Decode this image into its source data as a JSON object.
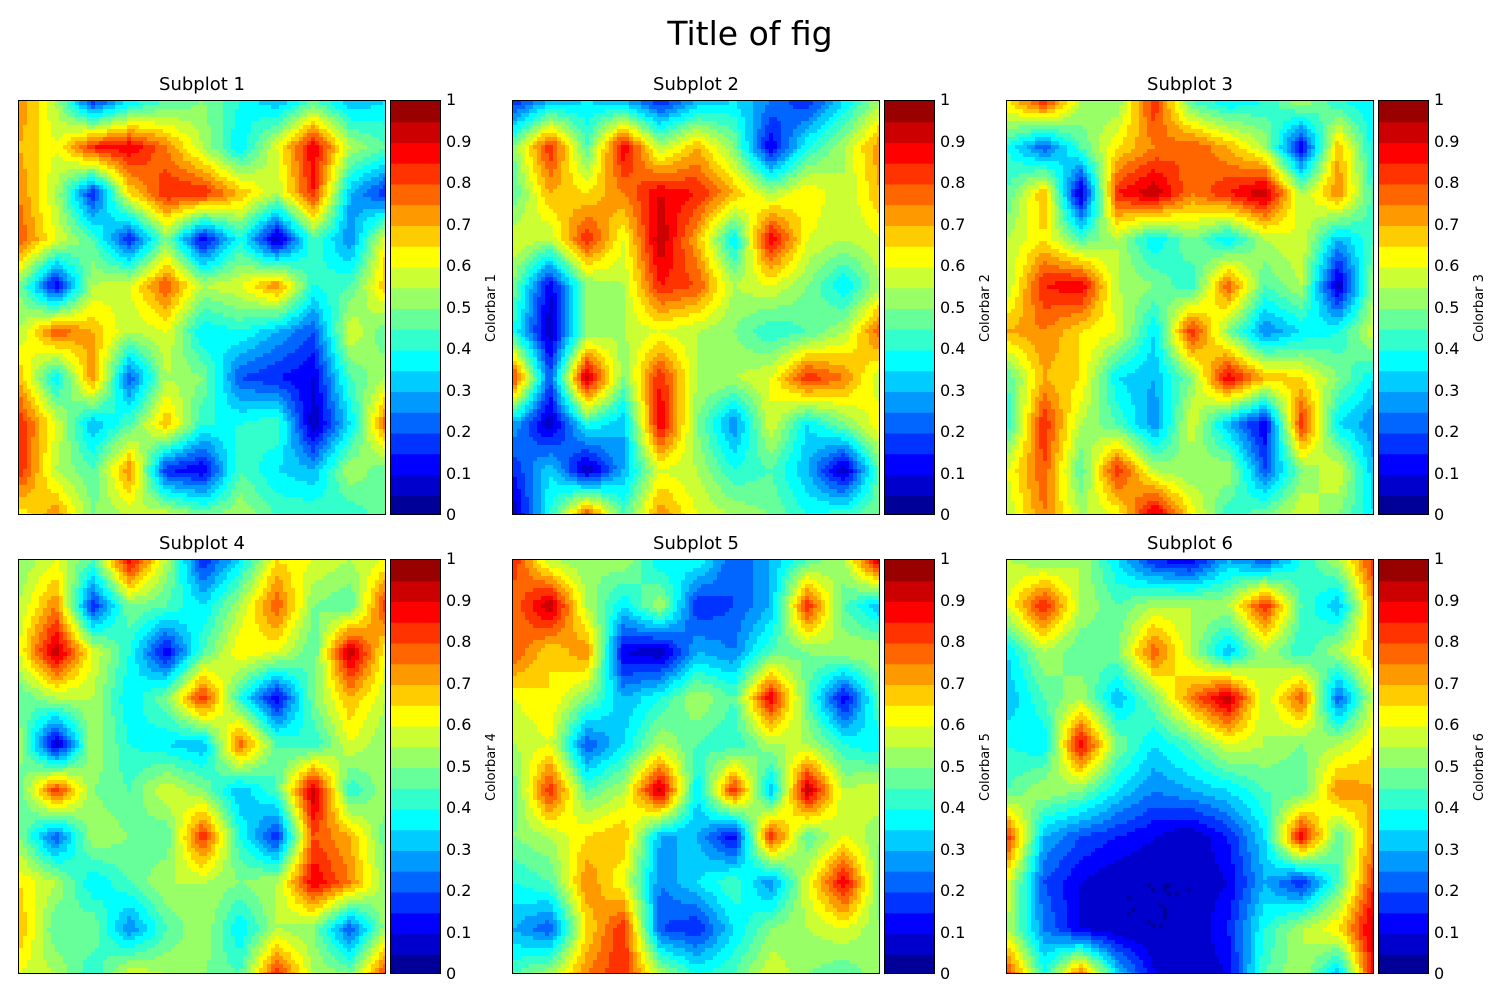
{
  "figure": {
    "title": "Title of fig"
  },
  "chart_data": [
    {
      "type": "heatmap",
      "title": "Subplot 1",
      "colorbar_label": "Colorbar 1",
      "colormap": "jet",
      "levels": 20,
      "zlim": [
        0,
        1
      ],
      "colorbar_ticks": [
        "0",
        "0.1",
        "0.2",
        "0.3",
        "0.4",
        "0.5",
        "0.6",
        "0.7",
        "0.8",
        "0.9",
        "1"
      ],
      "x_ticks_visible": false,
      "y_ticks_visible": false,
      "z": [
        [
          0.75,
          0.55,
          0.15,
          0.35,
          0.45,
          0.5,
          0.4,
          0.3,
          0.45,
          0.3,
          0.35
        ],
        [
          0.7,
          0.6,
          0.85,
          0.9,
          0.75,
          0.55,
          0.35,
          0.6,
          0.9,
          0.55,
          0.45
        ],
        [
          0.75,
          0.55,
          0.15,
          0.65,
          0.85,
          0.85,
          0.7,
          0.55,
          0.85,
          0.3,
          0.15
        ],
        [
          0.8,
          0.6,
          0.45,
          0.15,
          0.5,
          0.1,
          0.4,
          0.05,
          0.45,
          0.25,
          0.65
        ],
        [
          0.5,
          0.1,
          0.55,
          0.6,
          0.8,
          0.55,
          0.6,
          0.75,
          0.4,
          0.45,
          0.7
        ],
        [
          0.55,
          0.8,
          0.7,
          0.55,
          0.6,
          0.35,
          0.4,
          0.3,
          0.2,
          0.6,
          0.45
        ],
        [
          0.7,
          0.35,
          0.75,
          0.2,
          0.55,
          0.5,
          0.2,
          0.15,
          0.1,
          0.45,
          0.55
        ],
        [
          0.85,
          0.6,
          0.3,
          0.45,
          0.7,
          0.4,
          0.4,
          0.45,
          0.05,
          0.35,
          0.8
        ],
        [
          0.85,
          0.55,
          0.45,
          0.75,
          0.15,
          0.1,
          0.45,
          0.35,
          0.3,
          0.55,
          0.45
        ],
        [
          0.6,
          0.75,
          0.5,
          0.55,
          0.6,
          0.5,
          0.55,
          0.45,
          0.45,
          0.4,
          0.5
        ]
      ]
    },
    {
      "type": "heatmap",
      "title": "Subplot 2",
      "colorbar_label": "Colorbar 2",
      "colormap": "jet",
      "levels": 20,
      "zlim": [
        0,
        1
      ],
      "colorbar_ticks": [
        "0",
        "0.1",
        "0.2",
        "0.3",
        "0.4",
        "0.5",
        "0.6",
        "0.7",
        "0.8",
        "0.9",
        "1"
      ],
      "x_ticks_visible": false,
      "y_ticks_visible": false,
      "z": [
        [
          0.15,
          0.3,
          0.35,
          0.3,
          0.15,
          0.3,
          0.35,
          0.25,
          0.15,
          0.35,
          0.55
        ],
        [
          0.5,
          0.85,
          0.45,
          0.9,
          0.55,
          0.7,
          0.5,
          0.1,
          0.4,
          0.55,
          0.75
        ],
        [
          0.45,
          0.7,
          0.65,
          0.75,
          0.9,
          0.85,
          0.7,
          0.55,
          0.65,
          0.55,
          0.7
        ],
        [
          0.6,
          0.55,
          0.85,
          0.6,
          0.95,
          0.7,
          0.35,
          0.9,
          0.6,
          0.55,
          0.6
        ],
        [
          0.5,
          0.1,
          0.5,
          0.55,
          0.85,
          0.8,
          0.55,
          0.6,
          0.5,
          0.35,
          0.55
        ],
        [
          0.4,
          0.05,
          0.5,
          0.55,
          0.6,
          0.55,
          0.5,
          0.4,
          0.45,
          0.55,
          0.8
        ],
        [
          0.85,
          0.2,
          0.95,
          0.5,
          0.85,
          0.55,
          0.55,
          0.6,
          0.85,
          0.75,
          0.55
        ],
        [
          0.3,
          0.05,
          0.4,
          0.3,
          0.9,
          0.5,
          0.25,
          0.6,
          0.35,
          0.5,
          0.65
        ],
        [
          0.15,
          0.35,
          0.05,
          0.3,
          0.6,
          0.55,
          0.4,
          0.45,
          0.3,
          0.05,
          0.5
        ],
        [
          0.05,
          0.4,
          0.85,
          0.45,
          0.75,
          0.6,
          0.55,
          0.5,
          0.4,
          0.45,
          0.5
        ]
      ]
    },
    {
      "type": "heatmap",
      "title": "Subplot 3",
      "colorbar_label": "Colorbar 3",
      "colormap": "jet",
      "levels": 20,
      "zlim": [
        0,
        1
      ],
      "colorbar_ticks": [
        "0",
        "0.1",
        "0.2",
        "0.3",
        "0.4",
        "0.5",
        "0.6",
        "0.7",
        "0.8",
        "0.9",
        "1"
      ],
      "x_ticks_visible": false,
      "y_ticks_visible": false,
      "z": [
        [
          0.65,
          0.85,
          0.55,
          0.5,
          0.85,
          0.45,
          0.35,
          0.4,
          0.55,
          0.4,
          0.35
        ],
        [
          0.4,
          0.2,
          0.45,
          0.65,
          0.75,
          0.8,
          0.7,
          0.55,
          0.1,
          0.7,
          0.35
        ],
        [
          0.45,
          0.7,
          0.05,
          0.85,
          0.95,
          0.75,
          0.85,
          0.95,
          0.55,
          0.75,
          0.4
        ],
        [
          0.55,
          0.65,
          0.45,
          0.55,
          0.35,
          0.5,
          0.35,
          0.55,
          0.6,
          0.3,
          0.45
        ],
        [
          0.55,
          0.85,
          0.9,
          0.55,
          0.5,
          0.4,
          0.8,
          0.45,
          0.55,
          0.05,
          0.55
        ],
        [
          0.7,
          0.75,
          0.65,
          0.6,
          0.35,
          0.85,
          0.5,
          0.25,
          0.35,
          0.4,
          0.6
        ],
        [
          0.45,
          0.7,
          0.65,
          0.35,
          0.3,
          0.5,
          0.9,
          0.7,
          0.65,
          0.5,
          0.35
        ],
        [
          0.4,
          0.85,
          0.55,
          0.45,
          0.25,
          0.6,
          0.3,
          0.1,
          0.85,
          0.35,
          0.25
        ],
        [
          0.6,
          0.8,
          0.45,
          0.85,
          0.55,
          0.5,
          0.55,
          0.2,
          0.5,
          0.6,
          0.3
        ],
        [
          0.55,
          0.75,
          0.55,
          0.6,
          0.95,
          0.65,
          0.4,
          0.5,
          0.6,
          0.5,
          0.35
        ]
      ]
    },
    {
      "type": "heatmap",
      "title": "Subplot 4",
      "colorbar_label": "Colorbar 4",
      "colormap": "jet",
      "levels": 20,
      "zlim": [
        0,
        1
      ],
      "colorbar_ticks": [
        "0",
        "0.1",
        "0.2",
        "0.3",
        "0.4",
        "0.5",
        "0.6",
        "0.7",
        "0.8",
        "0.9",
        "1"
      ],
      "x_ticks_visible": false,
      "y_ticks_visible": false,
      "z": [
        [
          0.5,
          0.6,
          0.45,
          0.9,
          0.55,
          0.15,
          0.35,
          0.65,
          0.6,
          0.55,
          0.6
        ],
        [
          0.55,
          0.75,
          0.15,
          0.5,
          0.45,
          0.35,
          0.55,
          0.8,
          0.5,
          0.45,
          0.85
        ],
        [
          0.6,
          0.95,
          0.6,
          0.4,
          0.1,
          0.45,
          0.65,
          0.6,
          0.45,
          0.95,
          0.6
        ],
        [
          0.45,
          0.55,
          0.55,
          0.35,
          0.5,
          0.85,
          0.4,
          0.1,
          0.5,
          0.7,
          0.55
        ],
        [
          0.55,
          0.05,
          0.55,
          0.4,
          0.35,
          0.3,
          0.8,
          0.45,
          0.4,
          0.6,
          0.5
        ],
        [
          0.45,
          0.85,
          0.5,
          0.45,
          0.6,
          0.5,
          0.3,
          0.45,
          0.95,
          0.4,
          0.55
        ],
        [
          0.5,
          0.2,
          0.55,
          0.5,
          0.45,
          0.85,
          0.4,
          0.15,
          0.8,
          0.7,
          0.45
        ],
        [
          0.65,
          0.55,
          0.35,
          0.45,
          0.55,
          0.55,
          0.5,
          0.55,
          0.9,
          0.75,
          0.5
        ],
        [
          0.7,
          0.45,
          0.5,
          0.25,
          0.45,
          0.55,
          0.35,
          0.55,
          0.5,
          0.2,
          0.55
        ],
        [
          0.6,
          0.55,
          0.4,
          0.6,
          0.55,
          0.5,
          0.45,
          0.85,
          0.55,
          0.5,
          0.85
        ]
      ]
    },
    {
      "type": "heatmap",
      "title": "Subplot 5",
      "colorbar_label": "Colorbar 5",
      "colormap": "jet",
      "levels": 20,
      "zlim": [
        0,
        1
      ],
      "colorbar_ticks": [
        "0",
        "0.1",
        "0.2",
        "0.3",
        "0.4",
        "0.5",
        "0.6",
        "0.7",
        "0.8",
        "0.9",
        "1"
      ],
      "x_ticks_visible": false,
      "y_ticks_visible": false,
      "z": [
        [
          0.85,
          0.55,
          0.5,
          0.55,
          0.35,
          0.4,
          0.2,
          0.3,
          0.45,
          0.55,
          0.95
        ],
        [
          0.75,
          0.95,
          0.55,
          0.35,
          0.55,
          0.15,
          0.2,
          0.3,
          0.85,
          0.45,
          0.3
        ],
        [
          0.8,
          0.65,
          0.75,
          0.1,
          0.05,
          0.3,
          0.25,
          0.45,
          0.5,
          0.55,
          0.55
        ],
        [
          0.6,
          0.65,
          0.5,
          0.3,
          0.4,
          0.55,
          0.45,
          0.9,
          0.45,
          0.1,
          0.5
        ],
        [
          0.55,
          0.6,
          0.2,
          0.35,
          0.55,
          0.45,
          0.4,
          0.55,
          0.55,
          0.4,
          0.35
        ],
        [
          0.45,
          0.85,
          0.45,
          0.55,
          0.95,
          0.35,
          0.85,
          0.3,
          0.95,
          0.55,
          0.6
        ],
        [
          0.5,
          0.55,
          0.65,
          0.7,
          0.3,
          0.3,
          0.1,
          0.85,
          0.45,
          0.6,
          0.5
        ],
        [
          0.4,
          0.45,
          0.75,
          0.6,
          0.25,
          0.35,
          0.45,
          0.25,
          0.6,
          0.9,
          0.45
        ],
        [
          0.3,
          0.2,
          0.65,
          0.85,
          0.2,
          0.15,
          0.35,
          0.5,
          0.55,
          0.6,
          0.5
        ],
        [
          0.45,
          0.55,
          0.75,
          0.85,
          0.55,
          0.4,
          0.45,
          0.6,
          0.5,
          0.45,
          0.55
        ]
      ]
    },
    {
      "type": "heatmap",
      "title": "Subplot 6",
      "colorbar_label": "Colorbar 6",
      "colormap": "jet",
      "levels": 20,
      "zlim": [
        0,
        1
      ],
      "colorbar_ticks": [
        "0",
        "0.1",
        "0.2",
        "0.3",
        "0.4",
        "0.5",
        "0.6",
        "0.7",
        "0.8",
        "0.9",
        "1"
      ],
      "x_ticks_visible": false,
      "y_ticks_visible": false,
      "z": [
        [
          0.55,
          0.5,
          0.55,
          0.35,
          0.15,
          0.1,
          0.3,
          0.2,
          0.4,
          0.55,
          0.85
        ],
        [
          0.6,
          0.85,
          0.55,
          0.45,
          0.55,
          0.55,
          0.55,
          0.85,
          0.45,
          0.3,
          0.75
        ],
        [
          0.35,
          0.55,
          0.45,
          0.5,
          0.8,
          0.55,
          0.3,
          0.55,
          0.4,
          0.55,
          0.7
        ],
        [
          0.3,
          0.45,
          0.55,
          0.3,
          0.5,
          0.75,
          0.95,
          0.55,
          0.8,
          0.2,
          0.6
        ],
        [
          0.4,
          0.35,
          0.9,
          0.5,
          0.35,
          0.45,
          0.6,
          0.55,
          0.5,
          0.55,
          0.65
        ],
        [
          0.45,
          0.55,
          0.5,
          0.35,
          0.25,
          0.3,
          0.35,
          0.45,
          0.45,
          0.75,
          0.7
        ],
        [
          0.85,
          0.3,
          0.2,
          0.15,
          0.1,
          0.05,
          0.15,
          0.35,
          0.9,
          0.45,
          0.75
        ],
        [
          0.6,
          0.2,
          0.1,
          0.05,
          0.05,
          0.05,
          0.1,
          0.3,
          0.15,
          0.45,
          0.85
        ],
        [
          0.55,
          0.25,
          0.1,
          0.05,
          0.05,
          0.05,
          0.15,
          0.4,
          0.55,
          0.65,
          0.95
        ],
        [
          0.85,
          0.4,
          0.8,
          0.35,
          0.1,
          0.05,
          0.1,
          0.45,
          0.55,
          0.3,
          0.9
        ]
      ]
    }
  ]
}
